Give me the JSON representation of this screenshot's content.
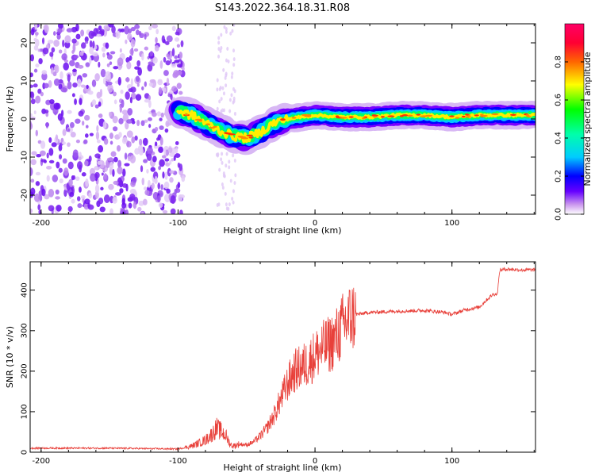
{
  "title": "S143.2022.364.18.31.R08",
  "chart_data": [
    {
      "type": "heatmap",
      "xlabel": "Height of straight line (km)",
      "ylabel": "Frequency (Hz)",
      "xlim": [
        -208,
        161
      ],
      "ylim": [
        -25,
        25
      ],
      "x_ticks": [
        -200,
        -100,
        0,
        100
      ],
      "x_tick_labels": [
        "-200",
        "-100",
        "0",
        "100"
      ],
      "y_ticks": [
        -20,
        -10,
        0,
        10,
        20
      ],
      "y_tick_labels": [
        "-20",
        "-10",
        "0",
        "10",
        "20"
      ],
      "colorbar": {
        "label": "Normalized spectral amplitude",
        "range": [
          0,
          1
        ],
        "ticks": [
          0.0,
          0.2,
          0.4,
          0.6,
          0.8
        ],
        "tick_labels": [
          "0.0",
          "0.2",
          "0.4",
          "0.6",
          "0.8"
        ]
      },
      "ridge_frequency": {
        "x": [
          -100,
          -90,
          -80,
          -70,
          -60,
          -50,
          -40,
          -30,
          -20,
          -10,
          0,
          20,
          40,
          60,
          80,
          100,
          120,
          140,
          160
        ],
        "y": [
          2,
          1,
          -1,
          -3,
          -4.5,
          -5,
          -3.5,
          -1,
          0,
          0.5,
          1,
          0.5,
          0.5,
          1,
          1,
          0.5,
          1,
          1,
          1
        ]
      },
      "noise_region_x": [
        -208,
        -100
      ]
    },
    {
      "type": "line",
      "xlabel": "Height of straight line (km)",
      "ylabel": "SNR (10 * v/v)",
      "xlim": [
        -208,
        161
      ],
      "ylim": [
        0,
        470
      ],
      "x_ticks": [
        -200,
        -100,
        0,
        100
      ],
      "x_tick_labels": [
        "-200",
        "-100",
        "0",
        "100"
      ],
      "y_ticks": [
        0,
        100,
        200,
        300,
        400
      ],
      "y_tick_labels": [
        "0",
        "100",
        "200",
        "300",
        "400"
      ],
      "series": [
        {
          "color": "#e8403a",
          "x": [
            -208,
            -150,
            -100,
            -90,
            -80,
            -75,
            -72,
            -68,
            -65,
            -62,
            -60,
            -55,
            -50,
            -45,
            -40,
            -35,
            -30,
            -25,
            -20,
            -15,
            -10,
            -5,
            0,
            5,
            10,
            15,
            20,
            25,
            30,
            40,
            60,
            80,
            95,
            100,
            110,
            120,
            125,
            130,
            133,
            135,
            140,
            150,
            161
          ],
          "y": [
            10,
            10,
            8,
            15,
            30,
            45,
            60,
            50,
            40,
            20,
            15,
            20,
            18,
            25,
            40,
            60,
            90,
            130,
            170,
            200,
            210,
            220,
            240,
            255,
            265,
            280,
            310,
            330,
            340,
            345,
            348,
            350,
            345,
            340,
            352,
            358,
            375,
            390,
            390,
            450,
            452,
            450,
            450
          ]
        }
      ]
    }
  ]
}
